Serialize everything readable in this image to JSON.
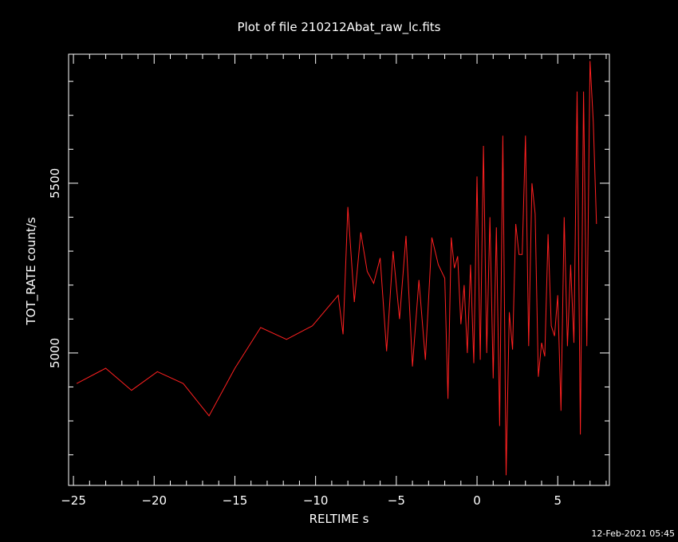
{
  "footer_timestamp": "12-Feb-2021 05:45",
  "chart_data": {
    "type": "line",
    "title": "Plot of file 210212Abat_raw_lc.fits",
    "xlabel": "RELTIME  s",
    "ylabel": "TOT_RATE  count/s",
    "xlim": [
      -25.3,
      8.2
    ],
    "ylim": [
      4610,
      5880
    ],
    "x_major_ticks": [
      -25,
      -20,
      -15,
      -10,
      -5,
      0,
      5
    ],
    "x_tick_labels": [
      "−25",
      "−20",
      "−15",
      "−10",
      "−5",
      "0",
      "5"
    ],
    "y_major_ticks": [
      5000,
      5500
    ],
    "y_tick_labels": [
      "5000",
      "5500"
    ],
    "x_minor_step": 1,
    "y_minor_step": 100,
    "series": [
      {
        "color": "#ff2020",
        "x": [
          -24.8,
          -23.0,
          -21.4,
          -19.8,
          -18.2,
          -16.6,
          -15.0,
          -13.4,
          -11.8,
          -10.2,
          -8.6,
          -8.3,
          -8.0,
          -7.6,
          -7.2,
          -6.8,
          -6.4,
          -6.0,
          -5.6,
          -5.2,
          -4.8,
          -4.4,
          -4.0,
          -3.6,
          -3.2,
          -2.8,
          -2.4,
          -2.0,
          -1.8,
          -1.6,
          -1.4,
          -1.2,
          -1.0,
          -0.8,
          -0.6,
          -0.4,
          -0.2,
          0.0,
          0.2,
          0.4,
          0.6,
          0.8,
          1.0,
          1.2,
          1.4,
          1.6,
          1.8,
          2.0,
          2.2,
          2.4,
          2.6,
          2.8,
          3.0,
          3.2,
          3.4,
          3.6,
          3.8,
          4.0,
          4.2,
          4.4,
          4.6,
          4.8,
          5.0,
          5.2,
          5.4,
          5.6,
          5.8,
          6.0,
          6.2,
          6.4,
          6.6,
          6.8,
          7.0,
          7.2,
          7.4
        ],
        "y": [
          4910,
          4955,
          4890,
          4945,
          4910,
          4815,
          4955,
          5075,
          5040,
          5080,
          5170,
          5055,
          5430,
          5150,
          5355,
          5240,
          5205,
          5280,
          5005,
          5300,
          5100,
          5345,
          4960,
          5215,
          4980,
          5340,
          5260,
          5220,
          4865,
          5340,
          5250,
          5285,
          5085,
          5200,
          5000,
          5260,
          4970,
          5520,
          4980,
          5610,
          5000,
          5400,
          4925,
          5370,
          4785,
          5640,
          4640,
          5120,
          5010,
          5380,
          5290,
          5290,
          5640,
          5020,
          5500,
          5410,
          4930,
          5030,
          4990,
          5350,
          5080,
          5050,
          5170,
          4830,
          5400,
          5020,
          5260,
          5030,
          5770,
          4760,
          5770,
          5020,
          5860,
          5680,
          5380
        ]
      }
    ]
  }
}
